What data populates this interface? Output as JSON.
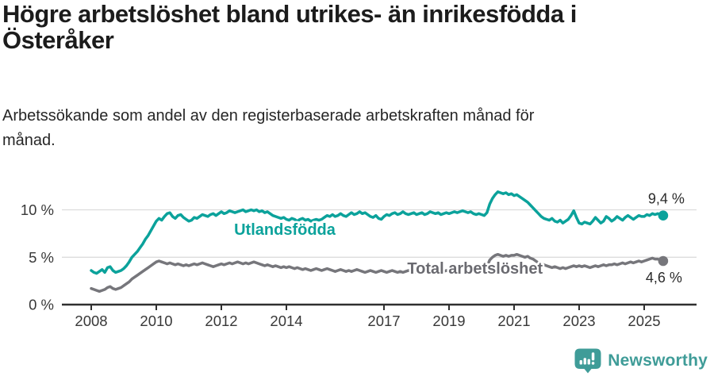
{
  "chart_data": {
    "type": "line",
    "title": "Högre arbetslöshet bland utrikes- än inrikesfödda i Österåker",
    "subtitle": "Arbetssökande som andel av den registerbaserade arbetskraften månad för månad.",
    "x_unit": "month",
    "x_range": [
      "2008-01",
      "2025-08"
    ],
    "x_tick_labels": [
      "2008",
      "2010",
      "2012",
      "2014",
      "2017",
      "2019",
      "2021",
      "2023",
      "2025"
    ],
    "y_ticks": [
      {
        "value": 10,
        "label": "10 %"
      },
      {
        "value": 5,
        "label": "5 %"
      },
      {
        "value": 0,
        "label": "0 %"
      }
    ],
    "ylim": [
      0,
      12.5
    ],
    "grid": "horizontal",
    "legend": "inline-labels",
    "series": [
      {
        "name": "Utlandsfödda",
        "color": "#0ba29b",
        "label_color": "#0ba29b",
        "end_value": 9.4,
        "end_label": "9,4 %",
        "label_anchor": {
          "year": 2013.95,
          "value": 7.35
        },
        "values": [
          3.6,
          3.4,
          3.3,
          3.5,
          3.7,
          3.4,
          3.9,
          4.0,
          3.6,
          3.4,
          3.5,
          3.6,
          3.8,
          4.1,
          4.5,
          5.0,
          5.3,
          5.6,
          6.0,
          6.4,
          6.9,
          7.3,
          7.8,
          8.3,
          8.8,
          9.1,
          8.9,
          9.3,
          9.6,
          9.7,
          9.3,
          9.1,
          9.4,
          9.5,
          9.2,
          9.0,
          8.8,
          8.9,
          9.2,
          9.1,
          9.3,
          9.5,
          9.4,
          9.3,
          9.5,
          9.6,
          9.4,
          9.6,
          9.8,
          9.6,
          9.7,
          9.9,
          9.8,
          9.7,
          9.8,
          9.9,
          10.0,
          9.8,
          9.9,
          10.0,
          9.9,
          10.0,
          9.8,
          9.9,
          9.7,
          9.8,
          9.6,
          9.4,
          9.3,
          9.2,
          9.1,
          9.2,
          9.0,
          8.9,
          9.1,
          9.0,
          8.8,
          9.0,
          9.1,
          8.9,
          9.0,
          8.8,
          8.9,
          9.0,
          8.9,
          9.0,
          9.2,
          9.4,
          9.3,
          9.5,
          9.3,
          9.4,
          9.6,
          9.4,
          9.3,
          9.5,
          9.7,
          9.5,
          9.6,
          9.8,
          9.6,
          9.7,
          9.5,
          9.3,
          9.2,
          9.4,
          9.1,
          9.0,
          9.3,
          9.5,
          9.4,
          9.6,
          9.7,
          9.5,
          9.6,
          9.8,
          9.6,
          9.5,
          9.6,
          9.7,
          9.5,
          9.6,
          9.7,
          9.5,
          9.6,
          9.8,
          9.7,
          9.6,
          9.7,
          9.5,
          9.6,
          9.7,
          9.6,
          9.7,
          9.8,
          9.7,
          9.8,
          9.9,
          9.8,
          9.7,
          9.8,
          9.6,
          9.5,
          9.6,
          9.5,
          9.4,
          9.7,
          10.6,
          11.2,
          11.6,
          11.9,
          11.8,
          11.7,
          11.8,
          11.6,
          11.7,
          11.5,
          11.6,
          11.4,
          11.2,
          11.0,
          10.8,
          10.5,
          10.2,
          9.9,
          9.6,
          9.3,
          9.1,
          9.0,
          8.9,
          9.1,
          8.8,
          8.7,
          8.9,
          8.6,
          8.8,
          9.0,
          9.4,
          9.9,
          9.2,
          8.6,
          8.5,
          8.7,
          8.6,
          8.5,
          8.8,
          9.2,
          8.9,
          8.6,
          8.8,
          9.3,
          9.1,
          8.8,
          9.0,
          9.3,
          9.1,
          8.9,
          9.2,
          9.4,
          9.2,
          9.0,
          9.2,
          9.4,
          9.3,
          9.3,
          9.5,
          9.4,
          9.6,
          9.5,
          9.6,
          9.5,
          9.4
        ]
      },
      {
        "name": "Total arbetslöshet",
        "color": "#76767b",
        "label_color": "#6a6a70",
        "end_value": 4.6,
        "end_label": "4,6 %",
        "label_anchor": {
          "year": 2019.8,
          "value": 3.27
        },
        "values": [
          1.7,
          1.6,
          1.5,
          1.4,
          1.5,
          1.6,
          1.8,
          1.9,
          1.7,
          1.6,
          1.7,
          1.8,
          2.0,
          2.2,
          2.4,
          2.7,
          2.9,
          3.1,
          3.3,
          3.5,
          3.7,
          3.9,
          4.1,
          4.3,
          4.5,
          4.6,
          4.5,
          4.4,
          4.3,
          4.4,
          4.3,
          4.2,
          4.3,
          4.2,
          4.1,
          4.2,
          4.1,
          4.2,
          4.3,
          4.2,
          4.3,
          4.4,
          4.3,
          4.2,
          4.1,
          4.0,
          4.1,
          4.2,
          4.3,
          4.2,
          4.3,
          4.4,
          4.3,
          4.4,
          4.5,
          4.4,
          4.3,
          4.4,
          4.3,
          4.4,
          4.5,
          4.4,
          4.3,
          4.2,
          4.1,
          4.2,
          4.1,
          4.0,
          4.1,
          4.0,
          3.9,
          4.0,
          3.9,
          4.0,
          3.9,
          3.8,
          3.9,
          3.8,
          3.7,
          3.8,
          3.7,
          3.6,
          3.7,
          3.8,
          3.7,
          3.6,
          3.7,
          3.8,
          3.7,
          3.6,
          3.5,
          3.6,
          3.7,
          3.6,
          3.5,
          3.6,
          3.5,
          3.6,
          3.7,
          3.6,
          3.5,
          3.4,
          3.5,
          3.6,
          3.5,
          3.4,
          3.5,
          3.6,
          3.5,
          3.4,
          3.5,
          3.6,
          3.5,
          3.4,
          3.5,
          3.4,
          3.5,
          3.6,
          3.5,
          3.4,
          3.5,
          3.4,
          3.5,
          3.4,
          3.5,
          3.6,
          3.5,
          3.4,
          3.5,
          3.4,
          3.5,
          3.6,
          3.5,
          3.6,
          3.5,
          3.6,
          3.7,
          3.6,
          3.7,
          3.6,
          3.7,
          3.6,
          3.7,
          3.8,
          3.7,
          3.8,
          4.0,
          4.7,
          5.0,
          5.2,
          5.3,
          5.2,
          5.1,
          5.2,
          5.1,
          5.2,
          5.2,
          5.3,
          5.2,
          5.1,
          5.0,
          5.1,
          4.9,
          4.8,
          4.6,
          4.4,
          4.3,
          4.2,
          4.1,
          4.0,
          3.9,
          4.0,
          3.9,
          3.8,
          3.9,
          3.8,
          3.9,
          4.0,
          4.1,
          4.0,
          4.1,
          4.0,
          4.1,
          4.0,
          3.9,
          4.0,
          4.1,
          4.0,
          4.1,
          4.2,
          4.1,
          4.2,
          4.2,
          4.3,
          4.2,
          4.3,
          4.4,
          4.3,
          4.4,
          4.5,
          4.4,
          4.5,
          4.6,
          4.5,
          4.6,
          4.7,
          4.8,
          4.9,
          4.8,
          4.8,
          4.7,
          4.6
        ]
      }
    ],
    "axis_colors": {
      "grid": "#dcdcdc",
      "axis": "#2f2f2f",
      "tick_text": "#383838"
    }
  },
  "footer": {
    "brand": "Newsworthy",
    "brand_color": "#3f9c98",
    "icon": "newsworthy-speech-bubble-bar-chart-icon"
  }
}
